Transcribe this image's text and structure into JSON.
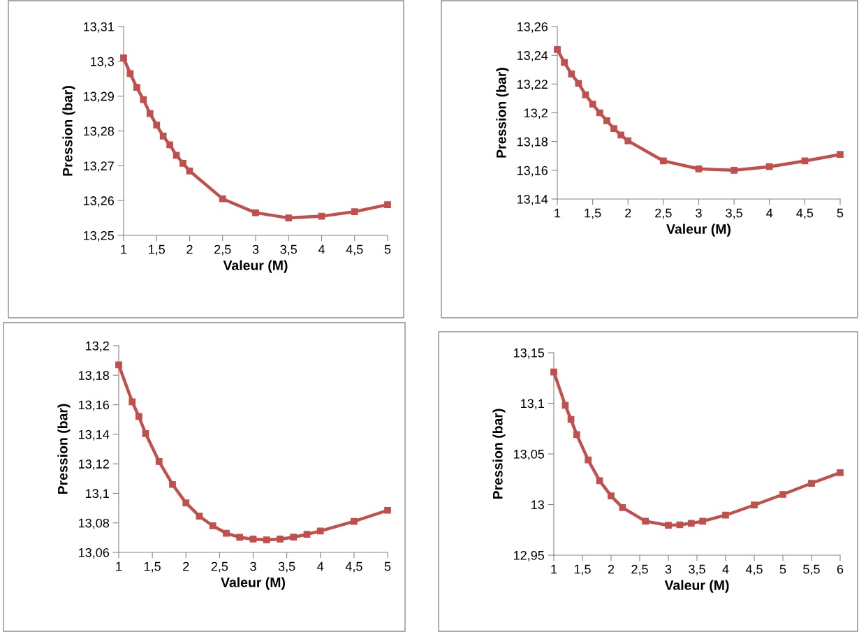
{
  "chart_data": [
    {
      "type": "line",
      "xlabel": "Valeur (M)",
      "ylabel": "Pression (bar)",
      "marker": "square",
      "x": [
        1,
        1.1,
        1.2,
        1.3,
        1.4,
        1.5,
        1.6,
        1.7,
        1.8,
        1.9,
        2,
        2.5,
        3,
        3.5,
        4,
        4.5,
        5
      ],
      "series": [
        {
          "color": "#c0504d",
          "values": [
            13.301,
            13.2965,
            13.2925,
            13.289,
            13.285,
            13.2817,
            13.2785,
            13.276,
            13.273,
            13.2707,
            13.2685,
            13.2605,
            13.2565,
            13.255,
            13.2555,
            13.2568,
            13.2588
          ]
        }
      ],
      "xlim": [
        1,
        5
      ],
      "xticks": [
        1,
        {
          "value": 1.5,
          "label": "1,5"
        },
        2,
        {
          "value": 2.5,
          "label": "2,5"
        },
        3,
        {
          "value": 3.5,
          "label": "3,5"
        },
        4,
        {
          "value": 4.5,
          "label": "4,5"
        },
        5
      ],
      "ylim": [
        13.25,
        13.31
      ],
      "yticks": [
        {
          "value": 13.25,
          "label": "13,25"
        },
        {
          "value": 13.26,
          "label": "13,26"
        },
        {
          "value": 13.27,
          "label": "13,27"
        },
        {
          "value": 13.28,
          "label": "13,28"
        },
        {
          "value": 13.29,
          "label": "13,29"
        },
        {
          "value": 13.3,
          "label": "13,3"
        },
        {
          "value": 13.31,
          "label": "13,31"
        }
      ]
    },
    {
      "type": "line",
      "xlabel": "Valeur (M)",
      "ylabel": "Pression (bar)",
      "marker": "square",
      "x": [
        1,
        1.1,
        1.2,
        1.3,
        1.4,
        1.5,
        1.6,
        1.7,
        1.8,
        1.9,
        2,
        2.5,
        3,
        3.5,
        4,
        4.5,
        5
      ],
      "series": [
        {
          "color": "#c0504d",
          "values": [
            13.244,
            13.235,
            13.227,
            13.2205,
            13.2125,
            13.206,
            13.2,
            13.1945,
            13.189,
            13.1845,
            13.1805,
            13.1665,
            13.161,
            13.16,
            13.1625,
            13.1665,
            13.171
          ]
        }
      ],
      "xlim": [
        1,
        5
      ],
      "xticks": [
        1,
        {
          "value": 1.5,
          "label": "1,5"
        },
        2,
        {
          "value": 2.5,
          "label": "2,5"
        },
        3,
        {
          "value": 3.5,
          "label": "3,5"
        },
        4,
        {
          "value": 4.5,
          "label": "4,5"
        },
        5
      ],
      "ylim": [
        13.14,
        13.26
      ],
      "yticks": [
        {
          "value": 13.14,
          "label": "13,14"
        },
        {
          "value": 13.16,
          "label": "13,16"
        },
        {
          "value": 13.18,
          "label": "13,18"
        },
        {
          "value": 13.2,
          "label": "13,2"
        },
        {
          "value": 13.22,
          "label": "13,22"
        },
        {
          "value": 13.24,
          "label": "13,24"
        },
        {
          "value": 13.26,
          "label": "13,26"
        }
      ]
    },
    {
      "type": "line",
      "xlabel": "Valeur (M)",
      "ylabel": "Pression (bar)",
      "marker": "square",
      "x": [
        1,
        1.2,
        1.3,
        1.4,
        1.6,
        1.8,
        2,
        2.2,
        2.4,
        2.6,
        2.8,
        3,
        3.2,
        3.4,
        3.6,
        3.8,
        4,
        4.5,
        5
      ],
      "series": [
        {
          "color": "#c0504d",
          "values": [
            13.187,
            13.162,
            13.152,
            13.1405,
            13.1215,
            13.106,
            13.0935,
            13.0845,
            13.078,
            13.073,
            13.0702,
            13.069,
            13.0685,
            13.069,
            13.0703,
            13.0722,
            13.0745,
            13.081,
            13.0885
          ]
        }
      ],
      "xlim": [
        1,
        5
      ],
      "xticks": [
        1,
        {
          "value": 1.5,
          "label": "1,5"
        },
        2,
        {
          "value": 2.5,
          "label": "2,5"
        },
        3,
        {
          "value": 3.5,
          "label": "3,5"
        },
        4,
        {
          "value": 4.5,
          "label": "4,5"
        },
        5
      ],
      "ylim": [
        13.06,
        13.2
      ],
      "yticks": [
        {
          "value": 13.06,
          "label": "13,06"
        },
        {
          "value": 13.08,
          "label": "13,08"
        },
        {
          "value": 13.1,
          "label": "13,1"
        },
        {
          "value": 13.12,
          "label": "13,12"
        },
        {
          "value": 13.14,
          "label": "13,14"
        },
        {
          "value": 13.16,
          "label": "13,16"
        },
        {
          "value": 13.18,
          "label": "13,18"
        },
        {
          "value": 13.2,
          "label": "13,2"
        }
      ]
    },
    {
      "type": "line",
      "xlabel": "Valeur (M)",
      "ylabel": "Pression (bar)",
      "marker": "square",
      "x": [
        1,
        1.2,
        1.3,
        1.4,
        1.6,
        1.8,
        2,
        2.2,
        2.6,
        3,
        3.2,
        3.4,
        3.6,
        4,
        4.5,
        5,
        5.5,
        6
      ],
      "series": [
        {
          "color": "#c0504d",
          "values": [
            13.131,
            13.098,
            13.084,
            13.069,
            13.044,
            13.0235,
            13.0085,
            12.997,
            12.9835,
            12.9795,
            12.98,
            12.9815,
            12.9835,
            12.9895,
            12.9995,
            13.01,
            13.021,
            13.0315
          ]
        }
      ],
      "xlim": [
        1,
        6
      ],
      "xticks": [
        1,
        {
          "value": 1.5,
          "label": "1,5"
        },
        2,
        {
          "value": 2.5,
          "label": "2,5"
        },
        3,
        {
          "value": 3.5,
          "label": "3,5"
        },
        4,
        {
          "value": 4.5,
          "label": "4,5"
        },
        5,
        {
          "value": 5.5,
          "label": "5,5"
        },
        6
      ],
      "ylim": [
        12.95,
        13.15
      ],
      "yticks": [
        {
          "value": 12.95,
          "label": "12,95"
        },
        {
          "value": 13,
          "label": "13"
        },
        {
          "value": 13.05,
          "label": "13,05"
        },
        {
          "value": 13.1,
          "label": "13,1"
        },
        {
          "value": 13.15,
          "label": "13,15"
        }
      ]
    }
  ]
}
